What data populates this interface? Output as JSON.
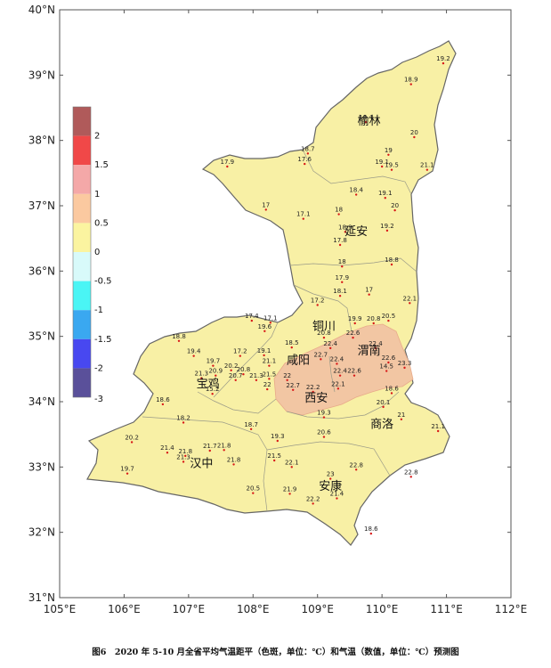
{
  "axes": {
    "x_ticks": [
      "105°E",
      "106°E",
      "107°E",
      "108°E",
      "109°E",
      "110°E",
      "111°E",
      "112°E"
    ],
    "y_ticks": [
      "40°N",
      "39°N",
      "38°N",
      "37°N",
      "36°N",
      "35°N",
      "34°N",
      "33°N",
      "32°N",
      "31°N"
    ],
    "x_values": [
      105,
      106,
      107,
      108,
      109,
      110,
      111,
      112
    ],
    "y_values": [
      40,
      39,
      38,
      37,
      36,
      35,
      34,
      33,
      32,
      31
    ],
    "xlim": [
      105,
      112
    ],
    "ylim": [
      31,
      40
    ]
  },
  "legend": {
    "labels": [
      "2",
      "1.5",
      "1",
      "0.5",
      "0",
      "-0.5",
      "-1",
      "-1.5",
      "-2",
      "-3"
    ],
    "colors": [
      "#b05a5a",
      "#f04848",
      "#f4a8a8",
      "#fbc9a0",
      "#fbf4a0",
      "#d8fafa",
      "#4af5f5",
      "#3aa8f0",
      "#4848f0",
      "#5a509a"
    ]
  },
  "colors": {
    "province_fill": "#f8f0a5",
    "anomaly_fill": "#f2c6a3",
    "boundary": "#888888",
    "station_marker": "#d81818"
  },
  "cities": [
    {
      "name": "榆林",
      "lon": 109.8,
      "lat": 38.24
    },
    {
      "name": "延安",
      "lon": 109.6,
      "lat": 36.55
    },
    {
      "name": "铜川",
      "lon": 109.1,
      "lat": 35.1
    },
    {
      "name": "渭南",
      "lon": 109.8,
      "lat": 34.72
    },
    {
      "name": "咸阳",
      "lon": 108.7,
      "lat": 34.58
    },
    {
      "name": "宝鸡",
      "lon": 107.3,
      "lat": 34.22
    },
    {
      "name": "西安",
      "lon": 108.98,
      "lat": 34.0
    },
    {
      "name": "商洛",
      "lon": 110.0,
      "lat": 33.6
    },
    {
      "name": "汉中",
      "lon": 107.2,
      "lat": 33.0
    },
    {
      "name": "安康",
      "lon": 109.2,
      "lat": 32.65
    }
  ],
  "stations": [
    {
      "v": "19.2",
      "lon": 110.95,
      "lat": 39.18
    },
    {
      "v": "18.9",
      "lon": 110.45,
      "lat": 38.86
    },
    {
      "v": "18.4",
      "lon": 109.75,
      "lat": 38.28
    },
    {
      "v": "18.7",
      "lon": 108.85,
      "lat": 37.8
    },
    {
      "v": "20",
      "lon": 110.5,
      "lat": 38.05
    },
    {
      "v": "19",
      "lon": 110.1,
      "lat": 37.78
    },
    {
      "v": "19.1",
      "lon": 110.0,
      "lat": 37.6
    },
    {
      "v": "19.5",
      "lon": 110.15,
      "lat": 37.55
    },
    {
      "v": "21.1",
      "lon": 110.7,
      "lat": 37.55
    },
    {
      "v": "17.9",
      "lon": 107.6,
      "lat": 37.6
    },
    {
      "v": "17.6",
      "lon": 108.8,
      "lat": 37.64
    },
    {
      "v": "18.4",
      "lon": 109.6,
      "lat": 37.17
    },
    {
      "v": "19.1",
      "lon": 110.05,
      "lat": 37.12
    },
    {
      "v": "20",
      "lon": 110.2,
      "lat": 36.93
    },
    {
      "v": "17",
      "lon": 108.2,
      "lat": 36.94
    },
    {
      "v": "17.1",
      "lon": 108.78,
      "lat": 36.8
    },
    {
      "v": "18",
      "lon": 109.33,
      "lat": 36.87
    },
    {
      "v": "19.2",
      "lon": 110.08,
      "lat": 36.62
    },
    {
      "v": "18.9",
      "lon": 109.43,
      "lat": 36.6
    },
    {
      "v": "17.8",
      "lon": 109.35,
      "lat": 36.4
    },
    {
      "v": "18.8",
      "lon": 110.15,
      "lat": 36.1
    },
    {
      "v": "18",
      "lon": 109.38,
      "lat": 36.07
    },
    {
      "v": "17.9",
      "lon": 109.38,
      "lat": 35.83
    },
    {
      "v": "18.1",
      "lon": 109.35,
      "lat": 35.62
    },
    {
      "v": "17",
      "lon": 109.8,
      "lat": 35.64
    },
    {
      "v": "17.2",
      "lon": 109.0,
      "lat": 35.48
    },
    {
      "v": "22.1",
      "lon": 110.43,
      "lat": 35.51
    },
    {
      "v": "17.4",
      "lon": 107.98,
      "lat": 35.24
    },
    {
      "v": "17.1",
      "lon": 108.27,
      "lat": 35.21
    },
    {
      "v": "19.6",
      "lon": 108.18,
      "lat": 35.08
    },
    {
      "v": "19.9",
      "lon": 109.58,
      "lat": 35.2
    },
    {
      "v": "20.8",
      "lon": 109.87,
      "lat": 35.2
    },
    {
      "v": "20.5",
      "lon": 110.1,
      "lat": 35.24
    },
    {
      "v": "20.8",
      "lon": 109.1,
      "lat": 34.98
    },
    {
      "v": "18.8",
      "lon": 106.85,
      "lat": 34.93
    },
    {
      "v": "22.6",
      "lon": 109.55,
      "lat": 34.98
    },
    {
      "v": "18.5",
      "lon": 108.6,
      "lat": 34.83
    },
    {
      "v": "22.4",
      "lon": 109.2,
      "lat": 34.82
    },
    {
      "v": "22.4",
      "lon": 109.9,
      "lat": 34.82
    },
    {
      "v": "19.4",
      "lon": 107.08,
      "lat": 34.7
    },
    {
      "v": "17.2",
      "lon": 107.8,
      "lat": 34.7
    },
    {
      "v": "19.1",
      "lon": 108.17,
      "lat": 34.71
    },
    {
      "v": "22.7",
      "lon": 109.05,
      "lat": 34.65
    },
    {
      "v": "22.4",
      "lon": 109.3,
      "lat": 34.58
    },
    {
      "v": "22.6",
      "lon": 110.1,
      "lat": 34.6
    },
    {
      "v": "23.3",
      "lon": 110.35,
      "lat": 34.52
    },
    {
      "v": "19.7",
      "lon": 107.38,
      "lat": 34.55
    },
    {
      "v": "21.1",
      "lon": 108.25,
      "lat": 34.55
    },
    {
      "v": "20.2",
      "lon": 107.66,
      "lat": 34.48
    },
    {
      "v": "14.5",
      "lon": 110.07,
      "lat": 34.47
    },
    {
      "v": "20.9",
      "lon": 107.42,
      "lat": 34.4
    },
    {
      "v": "21.3",
      "lon": 107.2,
      "lat": 34.36
    },
    {
      "v": "20.8",
      "lon": 107.85,
      "lat": 34.42
    },
    {
      "v": "22.4",
      "lon": 109.35,
      "lat": 34.4
    },
    {
      "v": "22.6",
      "lon": 109.57,
      "lat": 34.4
    },
    {
      "v": "20.7",
      "lon": 107.73,
      "lat": 34.33
    },
    {
      "v": "21.3",
      "lon": 108.05,
      "lat": 34.33
    },
    {
      "v": "21.5",
      "lon": 108.25,
      "lat": 34.35
    },
    {
      "v": "22",
      "lon": 108.53,
      "lat": 34.33
    },
    {
      "v": "22",
      "lon": 108.22,
      "lat": 34.19
    },
    {
      "v": "22.7",
      "lon": 108.62,
      "lat": 34.18
    },
    {
      "v": "22.2",
      "lon": 108.93,
      "lat": 34.15
    },
    {
      "v": "22.1",
      "lon": 109.32,
      "lat": 34.2
    },
    {
      "v": "15.2",
      "lon": 107.37,
      "lat": 34.12
    },
    {
      "v": "18.6",
      "lon": 110.15,
      "lat": 34.13
    },
    {
      "v": "18.6",
      "lon": 106.6,
      "lat": 33.96
    },
    {
      "v": "20.1",
      "lon": 110.02,
      "lat": 33.92
    },
    {
      "v": "19.3",
      "lon": 109.1,
      "lat": 33.76
    },
    {
      "v": "21",
      "lon": 110.3,
      "lat": 33.73
    },
    {
      "v": "18.2",
      "lon": 106.92,
      "lat": 33.68
    },
    {
      "v": "18.7",
      "lon": 107.97,
      "lat": 33.58
    },
    {
      "v": "20.6",
      "lon": 109.1,
      "lat": 33.46
    },
    {
      "v": "21.1",
      "lon": 110.87,
      "lat": 33.55
    },
    {
      "v": "20.2",
      "lon": 106.12,
      "lat": 33.38
    },
    {
      "v": "19.3",
      "lon": 108.38,
      "lat": 33.4
    },
    {
      "v": "21.4",
      "lon": 106.67,
      "lat": 33.22
    },
    {
      "v": "21.8",
      "lon": 106.95,
      "lat": 33.17
    },
    {
      "v": "21.7",
      "lon": 107.33,
      "lat": 33.25
    },
    {
      "v": "21.8",
      "lon": 107.55,
      "lat": 33.26
    },
    {
      "v": "21.3",
      "lon": 106.92,
      "lat": 33.08
    },
    {
      "v": "21.5",
      "lon": 108.33,
      "lat": 33.1
    },
    {
      "v": "21.8",
      "lon": 107.7,
      "lat": 33.04
    },
    {
      "v": "22.1",
      "lon": 108.6,
      "lat": 33.0
    },
    {
      "v": "22.8",
      "lon": 109.6,
      "lat": 32.96
    },
    {
      "v": "22.8",
      "lon": 110.45,
      "lat": 32.85
    },
    {
      "v": "19.7",
      "lon": 106.05,
      "lat": 32.9
    },
    {
      "v": "23",
      "lon": 109.2,
      "lat": 32.82
    },
    {
      "v": "20.5",
      "lon": 108.0,
      "lat": 32.6
    },
    {
      "v": "21.9",
      "lon": 108.57,
      "lat": 32.59
    },
    {
      "v": "21.4",
      "lon": 109.3,
      "lat": 32.52
    },
    {
      "v": "22.2",
      "lon": 108.93,
      "lat": 32.44
    },
    {
      "v": "18.6",
      "lon": 109.83,
      "lat": 31.98
    }
  ],
  "caption": "图6　2020 年 5-10 月全省平均气温距平（色斑，单位：℃）和气温（数值，单位：℃）预测图"
}
